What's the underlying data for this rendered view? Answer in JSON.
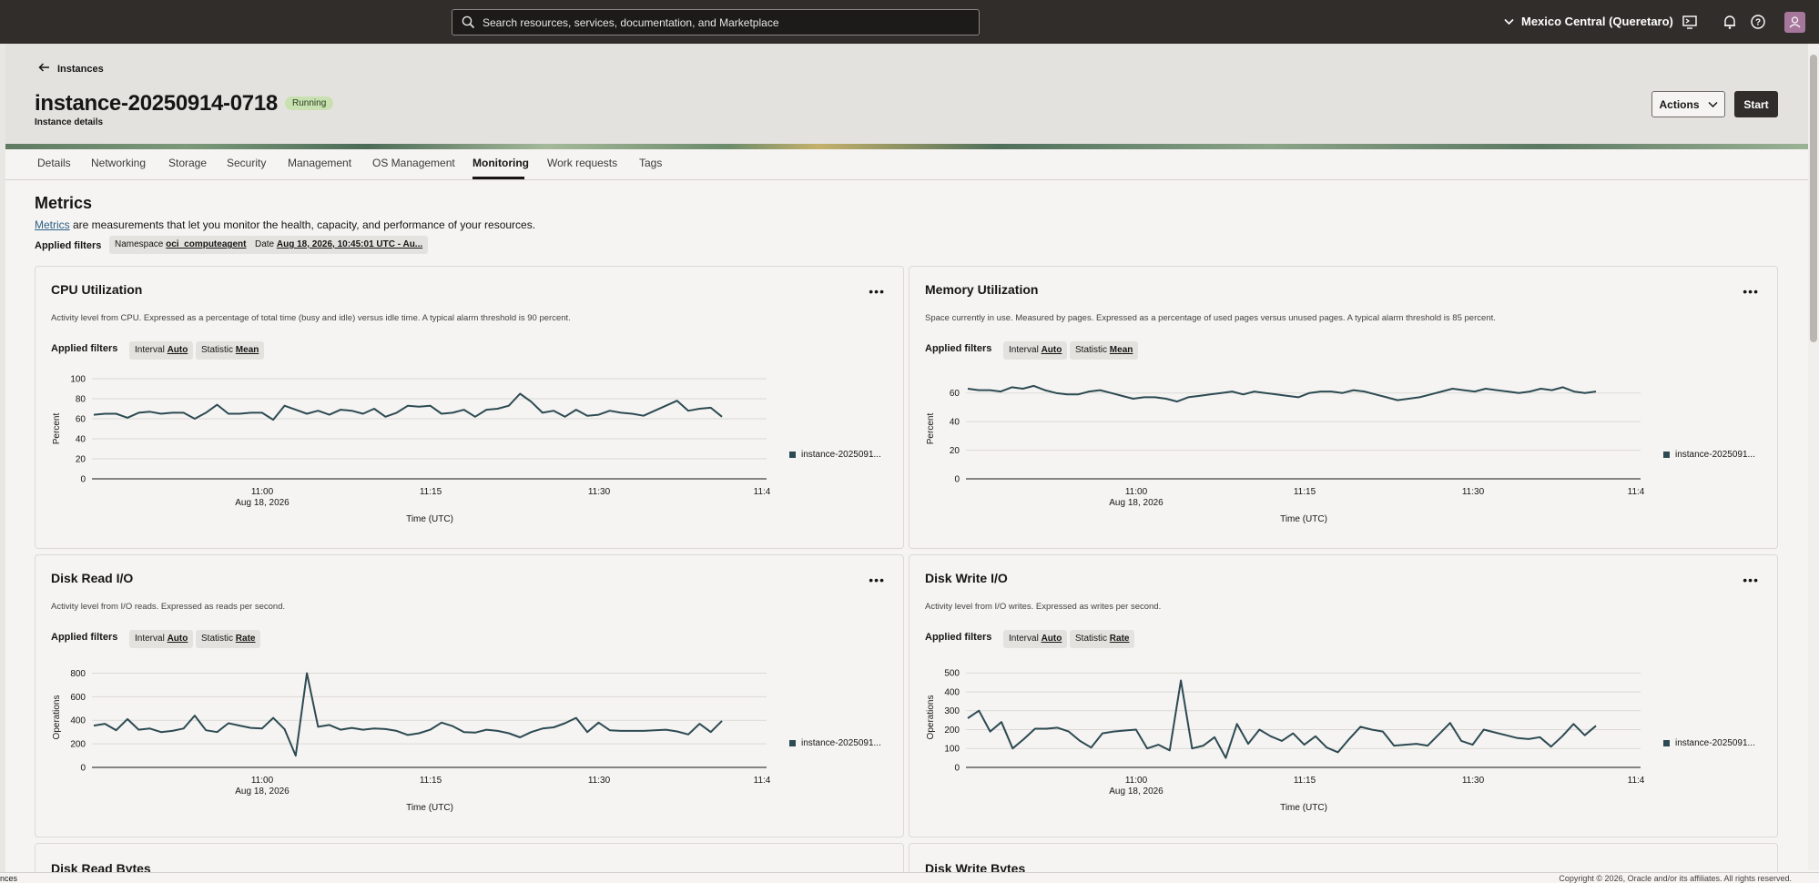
{
  "topbar": {
    "search_placeholder": "Search resources, services, documentation, and Marketplace",
    "region": "Mexico Central (Queretaro)"
  },
  "header": {
    "back_label": "Instances",
    "title": "instance-20250914-0718",
    "status": "Running",
    "subtitle": "Instance details",
    "actions_label": "Actions",
    "start_label": "Start"
  },
  "tabs": [
    "Details",
    "Networking",
    "Storage",
    "Security",
    "Management",
    "OS Management",
    "Monitoring",
    "Work requests",
    "Tags"
  ],
  "active_tab": "Monitoring",
  "metrics": {
    "title": "Metrics",
    "link": "Metrics",
    "description": " are measurements that let you monitor the health, capacity, and performance of your resources.",
    "applied_filters_label": "Applied filters",
    "namespace_label": "Namespace",
    "namespace_value": "oci_computeagent",
    "date_label": "Date",
    "date_value": "Aug 18, 2026, 10:45:01 UTC - Au..."
  },
  "cards": [
    {
      "title": "CPU Utilization",
      "description": "Activity level from CPU. Expressed as a percentage of total time (busy and idle) versus idle time. A typical alarm threshold is 90 percent.",
      "filter1_label": "Interval",
      "filter1_value": "Auto",
      "filter2_label": "Statistic",
      "filter2_value": "Mean",
      "legend": "instance-2025091..."
    },
    {
      "title": "Memory Utilization",
      "description": "Space currently in use. Measured by pages. Expressed as a percentage of used pages versus unused pages. A typical alarm threshold is 85 percent.",
      "filter1_label": "Interval",
      "filter1_value": "Auto",
      "filter2_label": "Statistic",
      "filter2_value": "Mean",
      "legend": "instance-2025091..."
    },
    {
      "title": "Disk Read I/O",
      "description": "Activity level from I/O reads. Expressed as reads per second.",
      "filter1_label": "Interval",
      "filter1_value": "Auto",
      "filter2_label": "Statistic",
      "filter2_value": "Rate",
      "legend": "instance-2025091..."
    },
    {
      "title": "Disk Write I/O",
      "description": "Activity level from I/O writes. Expressed as writes per second.",
      "filter1_label": "Interval",
      "filter1_value": "Auto",
      "filter2_label": "Statistic",
      "filter2_value": "Rate",
      "legend": "instance-2025091..."
    },
    {
      "title": "Disk Read Bytes"
    },
    {
      "title": "Disk Write Bytes"
    }
  ],
  "footer": {
    "left": "nces",
    "right": "Copyright © 2026, Oracle and/or its affiliates. All rights reserved."
  },
  "chart_data": [
    {
      "type": "line",
      "title": "CPU Utilization",
      "ylabel": "Percent",
      "xlabel": "Time (UTC)",
      "ylim": [
        0,
        100
      ],
      "yticks": [
        0,
        20,
        40,
        60,
        80,
        100
      ],
      "xticks": [
        "11:00",
        "11:15",
        "11:30",
        "11:4"
      ],
      "x_sublabel": "Aug 18, 2026",
      "grid": true,
      "legend": "right",
      "series": [
        {
          "name": "instance-2025091...",
          "values": [
            64,
            65,
            65,
            61,
            66,
            67,
            65,
            66,
            66,
            60,
            66,
            74,
            65,
            65,
            66,
            66,
            59,
            73,
            69,
            65,
            68,
            64,
            69,
            68,
            65,
            70,
            62,
            66,
            73,
            72,
            73,
            65,
            66,
            69,
            62,
            69,
            70,
            73,
            85,
            77,
            66,
            68,
            62,
            69,
            63,
            64,
            68,
            66,
            65,
            63,
            68,
            73,
            78,
            68,
            70,
            71,
            62
          ]
        }
      ]
    },
    {
      "type": "line",
      "title": "Memory Utilization",
      "ylabel": "Percent",
      "xlabel": "Time (UTC)",
      "ylim": [
        0,
        70
      ],
      "yticks": [
        0,
        20,
        40,
        60
      ],
      "xticks": [
        "11:00",
        "11:15",
        "11:30",
        "11:4"
      ],
      "x_sublabel": "Aug 18, 2026",
      "grid": true,
      "legend": "right",
      "series": [
        {
          "name": "instance-2025091...",
          "values": [
            63,
            62,
            62,
            61,
            64,
            63,
            65,
            62,
            60,
            59,
            59,
            61,
            62,
            60,
            58,
            56,
            57,
            57,
            56,
            54,
            57,
            58,
            59,
            60,
            61,
            59,
            61,
            60,
            59,
            58,
            57,
            60,
            61,
            61,
            60,
            62,
            61,
            59,
            57,
            55,
            56,
            57,
            59,
            61,
            63,
            62,
            61,
            63,
            62,
            61,
            60,
            61,
            63,
            62,
            64,
            61,
            60,
            61
          ]
        }
      ]
    },
    {
      "type": "line",
      "title": "Disk Read I/O",
      "ylabel": "Operations",
      "xlabel": "Time (UTC)",
      "ylim": [
        0,
        850
      ],
      "yticks": [
        0,
        200,
        400,
        600,
        800
      ],
      "xticks": [
        "11:00",
        "11:15",
        "11:30",
        "11:4"
      ],
      "x_sublabel": "Aug 18, 2026",
      "grid": true,
      "legend": "right",
      "series": [
        {
          "name": "instance-2025091...",
          "values": [
            355,
            370,
            315,
            410,
            320,
            330,
            300,
            310,
            330,
            440,
            315,
            300,
            375,
            355,
            335,
            330,
            420,
            325,
            100,
            800,
            345,
            360,
            320,
            335,
            320,
            330,
            325,
            310,
            275,
            290,
            320,
            380,
            350,
            300,
            295,
            320,
            310,
            290,
            255,
            300,
            330,
            340,
            375,
            420,
            300,
            380,
            315,
            310,
            310,
            310,
            315,
            320,
            305,
            280,
            370,
            300,
            395
          ]
        }
      ]
    },
    {
      "type": "line",
      "title": "Disk Write I/O",
      "ylabel": "Operations",
      "xlabel": "Time (UTC)",
      "ylim": [
        0,
        530
      ],
      "yticks": [
        0,
        100,
        200,
        300,
        400,
        500
      ],
      "xticks": [
        "11:00",
        "11:15",
        "11:30",
        "11:4"
      ],
      "x_sublabel": "Aug 18, 2026",
      "grid": true,
      "legend": "right",
      "series": [
        {
          "name": "instance-2025091...",
          "values": [
            260,
            300,
            190,
            240,
            100,
            150,
            205,
            205,
            210,
            190,
            140,
            105,
            180,
            190,
            195,
            200,
            100,
            120,
            90,
            460,
            100,
            115,
            160,
            50,
            230,
            125,
            200,
            165,
            140,
            180,
            120,
            165,
            105,
            80,
            150,
            215,
            200,
            190,
            115,
            120,
            125,
            115,
            175,
            235,
            140,
            120,
            200,
            185,
            170,
            155,
            150,
            160,
            110,
            165,
            230,
            170,
            220
          ]
        }
      ]
    }
  ]
}
